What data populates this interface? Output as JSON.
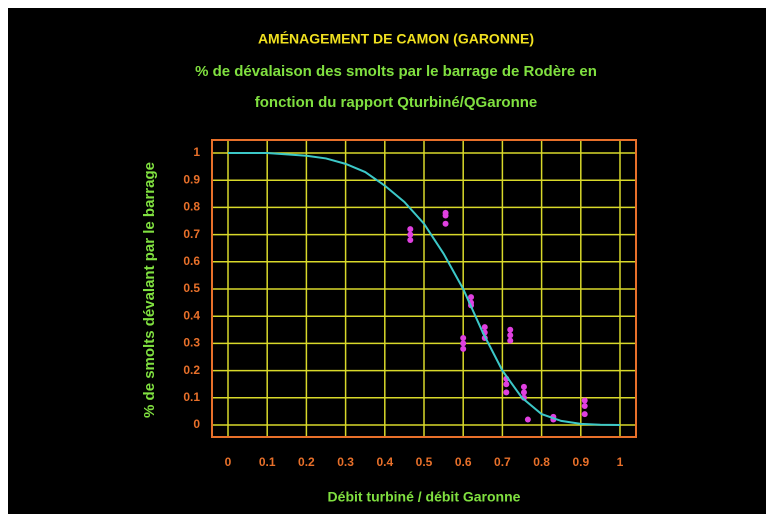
{
  "chart_data": {
    "type": "scatter",
    "title": "AMÉNAGEMENT DE CAMON (GARONNE)",
    "subtitle": [
      "% de dévalaison des smolts par le barrage de Rodère  en",
      "fonction du rapport Qturbiné/QGaronne"
    ],
    "x_label": "Débit turbiné / débit Garonne",
    "y_label": "% de smolts dévalant par le barrage",
    "xlim": [
      0,
      1
    ],
    "ylim": [
      0,
      1
    ],
    "xticks": [
      0,
      0.1,
      0.2,
      0.3,
      0.4,
      0.5,
      0.6,
      0.7,
      0.8,
      0.9,
      1
    ],
    "yticks": [
      0,
      0.1,
      0.2,
      0.3,
      0.4,
      0.5,
      0.6,
      0.7,
      0.8,
      0.9,
      1
    ],
    "grid": true,
    "grid_color": "#d9d92a",
    "axis_color": "#e8702a",
    "series": [
      {
        "style": "points",
        "color": "#e040e0",
        "x": [
          0.465,
          0.465,
          0.465,
          0.555,
          0.555,
          0.555,
          0.6,
          0.6,
          0.6,
          0.62,
          0.62,
          0.62,
          0.655,
          0.655,
          0.655,
          0.71,
          0.71,
          0.71,
          0.72,
          0.72,
          0.72,
          0.755,
          0.755,
          0.755,
          0.765,
          0.83,
          0.83,
          0.91,
          0.91,
          0.91
        ],
        "values": [
          0.72,
          0.7,
          0.68,
          0.78,
          0.77,
          0.74,
          0.32,
          0.3,
          0.28,
          0.47,
          0.45,
          0.44,
          0.36,
          0.34,
          0.32,
          0.17,
          0.15,
          0.12,
          0.35,
          0.33,
          0.31,
          0.14,
          0.12,
          0.1,
          0.02,
          0.03,
          0.02,
          0.09,
          0.07,
          0.04
        ]
      },
      {
        "style": "line",
        "color": "#3cc8c8",
        "x": [
          0,
          0.1,
          0.2,
          0.25,
          0.3,
          0.35,
          0.4,
          0.45,
          0.5,
          0.55,
          0.6,
          0.65,
          0.7,
          0.75,
          0.8,
          0.85,
          0.9,
          0.95,
          1
        ],
        "values": [
          1,
          1,
          0.99,
          0.98,
          0.96,
          0.93,
          0.88,
          0.82,
          0.74,
          0.63,
          0.5,
          0.34,
          0.2,
          0.1,
          0.04,
          0.015,
          0.004,
          0.001,
          0
        ]
      }
    ]
  }
}
